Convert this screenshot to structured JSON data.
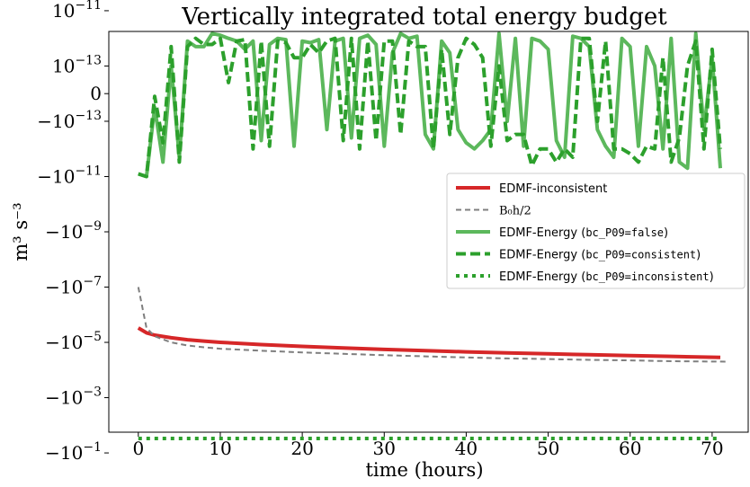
{
  "chart_data": {
    "type": "line",
    "title": "Vertically integrated total energy budget",
    "xlabel": "time (hours)",
    "ylabel": "m³ s⁻³",
    "xlim": [
      -3.6,
      74.4
    ],
    "x_ticks": [
      0,
      10,
      20,
      30,
      40,
      50,
      60,
      70
    ],
    "y_scale": "symlog",
    "y_ticks": [
      {
        "value": 1e-11,
        "mant": "10",
        "exp": "−11"
      },
      {
        "value": 1e-13,
        "mant": "10",
        "exp": "−13"
      },
      {
        "value": 0,
        "mant": "0",
        "exp": ""
      },
      {
        "value": -1e-13,
        "mant": "−10",
        "exp": "−13"
      },
      {
        "value": -1e-11,
        "mant": "−10",
        "exp": "−11"
      },
      {
        "value": -1e-09,
        "mant": "−10",
        "exp": "−9"
      },
      {
        "value": -1e-07,
        "mant": "−10",
        "exp": "−7"
      },
      {
        "value": -1e-05,
        "mant": "−10",
        "exp": "−5"
      },
      {
        "value": -0.001,
        "mant": "−10",
        "exp": "−3"
      },
      {
        "value": -0.1,
        "mant": "−10",
        "exp": "−1"
      }
    ],
    "grid": false,
    "legend_position": "right",
    "series": [
      {
        "name": "EDMF-inconsistent",
        "color": "#d62728",
        "style": "solid",
        "x": [
          0,
          1,
          2,
          4,
          6,
          8,
          10,
          15,
          20,
          25,
          30,
          35,
          40,
          45,
          50,
          55,
          60,
          65,
          71
        ],
        "y": [
          -3e-06,
          -4.5e-06,
          -5.5e-06,
          -6.8e-06,
          -8e-06,
          -9e-06,
          -1e-05,
          -1.2e-05,
          -1.4e-05,
          -1.6e-05,
          -1.8e-05,
          -2e-05,
          -2.2e-05,
          -2.4e-05,
          -2.6e-05,
          -2.8e-05,
          -3e-05,
          -3.2e-05,
          -3.5e-05
        ]
      },
      {
        "name": "B₀h/2",
        "color": "#7f7f7f",
        "style": "dashed",
        "x": [
          0,
          1,
          2,
          4,
          6,
          8,
          10,
          15,
          20,
          25,
          30,
          35,
          40,
          45,
          50,
          55,
          60,
          65,
          72
        ],
        "y": [
          -1e-07,
          -3e-06,
          -6e-06,
          -1e-05,
          -1.3e-05,
          -1.5e-05,
          -1.7e-05,
          -2e-05,
          -2.3e-05,
          -2.6e-05,
          -2.9e-05,
          -3.2e-05,
          -3.5e-05,
          -3.8e-05,
          -4e-05,
          -4.3e-05,
          -4.5e-05,
          -4.8e-05,
          -5e-05
        ]
      },
      {
        "name": "EDMF-Energy (bc_P09=false)",
        "name_prefix": "EDMF-Energy (",
        "name_code": "bc_P09=false",
        "name_suffix": ")",
        "color": "#5cb85c",
        "style": "solid",
        "x": [
          0,
          1,
          2,
          3,
          4,
          5,
          6,
          7,
          8,
          9,
          10,
          11,
          12,
          13,
          14,
          15,
          16,
          17,
          18,
          19,
          20,
          21,
          22,
          23,
          24,
          25,
          26,
          27,
          28,
          29,
          30,
          31,
          32,
          33,
          34,
          35,
          36,
          37,
          38,
          39,
          40,
          41,
          42,
          43,
          44,
          45,
          46,
          47,
          48,
          49,
          50,
          51,
          52,
          53,
          54,
          55,
          56,
          57,
          58,
          59,
          60,
          61,
          62,
          63,
          64,
          65,
          66,
          67,
          68,
          69,
          70,
          71
        ],
        "y": [
          -8e-12,
          -1e-11,
          -5e-14,
          -3e-12,
          1e-13,
          -2e-12,
          8e-13,
          5e-13,
          5e-13,
          1.5e-12,
          1.3e-12,
          1e-12,
          8e-13,
          4e-13,
          8e-13,
          -5e-13,
          6e-13,
          1e-12,
          9e-13,
          -8e-13,
          8e-13,
          7e-13,
          9e-13,
          -2e-13,
          8e-13,
          1e-12,
          -4e-13,
          1e-12,
          1.3e-12,
          6e-13,
          -8e-13,
          3e-13,
          1.5e-12,
          1e-12,
          1.2e-12,
          -3e-13,
          -1e-12,
          8e-13,
          3e-13,
          -2e-13,
          -6e-13,
          -1e-12,
          -5e-13,
          -2e-13,
          1.5e-12,
          -1e-13,
          1e-12,
          -8e-13,
          1e-12,
          8e-13,
          4e-13,
          -5e-13,
          -2e-12,
          1.2e-12,
          1e-12,
          5e-13,
          -2e-13,
          -8e-13,
          -2e-12,
          1e-12,
          5e-13,
          -8e-13,
          5e-13,
          1e-13,
          -1e-12,
          1e-12,
          -3e-12,
          -5e-12,
          1.5e-12,
          -2e-13,
          2e-13,
          -5e-12
        ]
      },
      {
        "name": "EDMF-Energy (bc_P09=consistent)",
        "name_prefix": "EDMF-Energy (",
        "name_code": "bc_P09=consistent",
        "name_suffix": ")",
        "color": "#2ca02c",
        "style": "dashed",
        "x": [
          0,
          1,
          2,
          3,
          4,
          5,
          6,
          7,
          8,
          9,
          10,
          11,
          12,
          13,
          14,
          15,
          16,
          17,
          18,
          19,
          20,
          21,
          22,
          23,
          24,
          25,
          26,
          27,
          28,
          29,
          30,
          31,
          32,
          33,
          34,
          35,
          36,
          37,
          38,
          39,
          40,
          41,
          42,
          43,
          44,
          45,
          46,
          47,
          48,
          49,
          50,
          51,
          52,
          53,
          54,
          55,
          56,
          57,
          58,
          59,
          60,
          61,
          62,
          63,
          64,
          65,
          66,
          67,
          68,
          69,
          70,
          71
        ],
        "y": [
          -8e-12,
          -1e-11,
          -1e-14,
          -6e-13,
          5e-13,
          -3e-12,
          5e-13,
          1e-12,
          6e-13,
          6e-13,
          1e-12,
          4e-14,
          8e-13,
          9e-13,
          -1e-12,
          8e-13,
          -8e-13,
          8e-13,
          7e-13,
          2e-13,
          2e-13,
          6e-13,
          3e-13,
          8e-13,
          1e-12,
          -5e-13,
          1e-12,
          -1e-12,
          8e-13,
          -5e-13,
          8e-13,
          8e-13,
          -3e-13,
          8e-13,
          5e-13,
          5e-13,
          -1e-12,
          4e-13,
          -3e-13,
          2e-13,
          1e-12,
          6e-13,
          2e-13,
          -8e-13,
          1e-13,
          -5e-13,
          -3e-13,
          -3e-13,
          -4e-12,
          -1e-12,
          -1e-12,
          -3e-12,
          -1e-12,
          -2e-12,
          1e-12,
          1e-12,
          -1e-13,
          8e-13,
          -1e-12,
          -1e-12,
          -1.5e-12,
          -3e-12,
          -8e-13,
          -1e-12,
          2e-13,
          -3e-12,
          -4e-13,
          1e-13,
          8e-13,
          -1e-12,
          4e-13,
          -1e-12
        ]
      },
      {
        "name": "EDMF-Energy (bc_P09=inconsistent)",
        "name_prefix": "EDMF-Energy (",
        "name_code": "bc_P09=inconsistent",
        "name_suffix": ")",
        "color": "#2ca02c",
        "style": "dotted",
        "x": [
          0,
          71
        ],
        "y": [
          -0.03,
          -0.03
        ]
      }
    ]
  }
}
